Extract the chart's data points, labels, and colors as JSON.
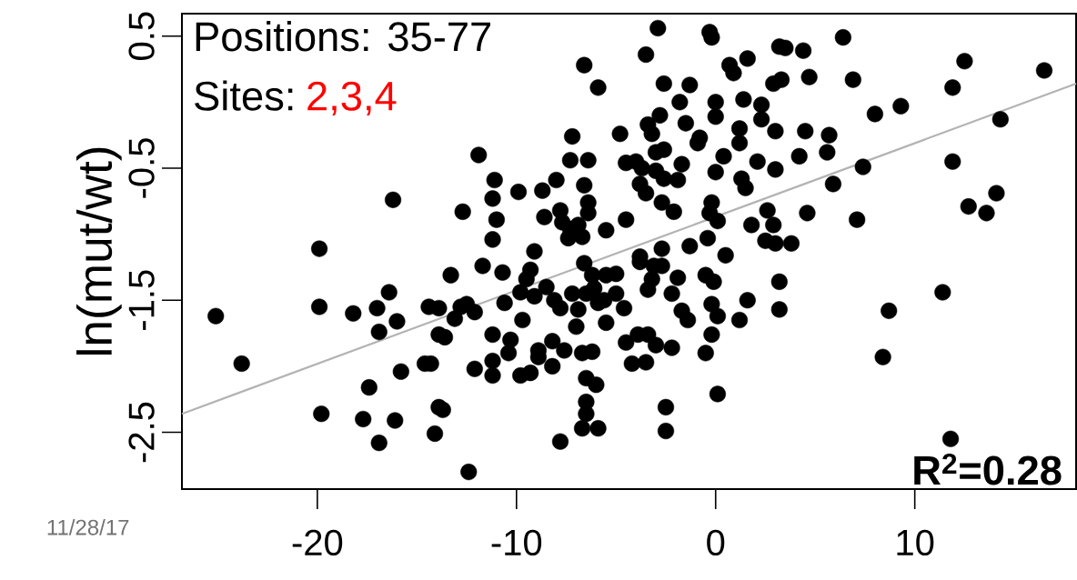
{
  "chart_data": {
    "type": "scatter",
    "ylabel": "ln(mut/wt)",
    "annotations": [
      "Positions: 35-77",
      "Sites:",
      "2,3,4",
      "R$^{2}$=0.28",
      "11/28/17"
    ],
    "xlim": [
      -26.8,
      18.1
    ],
    "ylim": [
      -2.93,
      0.67
    ],
    "xticks": [
      -20,
      -10,
      0,
      10
    ],
    "yticks": [
      0.5,
      -0.5,
      -1.5,
      -2.5
    ],
    "series": [
      {
        "color": "#000000",
        "marker": "circle",
        "x": [
          -25.1,
          -23.8,
          -19.9,
          -19.8,
          -19.9,
          -18.2,
          -17.0,
          -16.4,
          -16.0,
          -16.9,
          -13.3,
          -14.4,
          -13.9,
          -13.9,
          -13.6,
          -14.6,
          -14.3,
          -15.8,
          -17.4,
          -17.7,
          -16.9,
          -16.1,
          -14.1,
          -13.9,
          -13.7,
          -12.4,
          -12.8,
          -12.5,
          -13.1,
          -12.1,
          -12.1,
          -11.7,
          -16.2,
          -12.7,
          -11.9,
          -2.9,
          -0.3,
          -0.2,
          -6.6,
          -5.9,
          -3.5,
          -2.6,
          -1.3,
          -1.8,
          -2.8,
          -3.4,
          -3.2,
          0.0,
          0.0,
          1.4,
          2.3,
          2.3,
          3.0,
          0.7,
          1.6,
          0.9,
          2.9,
          3.2,
          -1.5,
          -0.8,
          -0.9,
          1.2,
          1.2,
          0.4,
          2.1,
          3.0,
          0.0,
          -4.8,
          -7.2,
          -7.3,
          -6.4,
          -4.5,
          -4.0,
          -3.7,
          -3.0,
          -2.6,
          -3.0,
          -2.6,
          -1.9,
          -1.7,
          -3.8,
          -3.5,
          1.3,
          1.5,
          -11.1,
          -11.2,
          -11.0,
          -11.2,
          -9.9,
          -8.7,
          -8.0,
          -6.6,
          -6.4,
          -6.4,
          -8.6,
          -7.8,
          -7.7,
          -7.3,
          -6.9,
          -7.4,
          -6.7,
          -5.5,
          -4.5,
          -2.7,
          -2.1,
          -0.2,
          -0.3,
          0.1,
          -0.4,
          1.8,
          2.6,
          2.9,
          2.5,
          3.0,
          -9.1,
          -2.7,
          -1.3,
          0.5,
          -3.8,
          3.5,
          4.4,
          6.4,
          3.3,
          4.7,
          6.9,
          12.5,
          16.5,
          11.9,
          8.0,
          9.3,
          14.3,
          4.5,
          5.7,
          5.6,
          4.2,
          7.4,
          11.9,
          5.9,
          4.6,
          7.1,
          3.8,
          14.1,
          12.7,
          13.6,
          -10.7,
          -9.3,
          -9.5,
          -9.8,
          -10.6,
          -9.1,
          -8.5,
          -6.6,
          -6.2,
          -5.5,
          -5.0,
          -7.2,
          -6.5,
          -6.1,
          -5.9,
          -5.6,
          -5.0,
          -4.6,
          -8.1,
          -7.8,
          -6.9,
          -5.5,
          -7.0,
          -9.7,
          -3.8,
          -3.1,
          -2.7,
          -3.2,
          -3.4,
          -2.2,
          -1.9,
          -0.5,
          -0.1,
          -1.7,
          -1.4,
          -0.2,
          0.1,
          1.6,
          1.2,
          3.2,
          3.2,
          -0.2,
          -0.5,
          -2.2,
          -3.0,
          -4.5,
          -3.9,
          -3.4,
          -4.2,
          -3.5,
          -11.2,
          -10.3,
          -10.4,
          -11.2,
          -11.2,
          -9.8,
          -9.3,
          -8.9,
          -8.9,
          -8.2,
          -7.6,
          -8.2,
          -6.7,
          -6.2,
          -6.5,
          -6.0,
          -6.5,
          -6.5,
          -6.7,
          -5.9,
          -7.8,
          -2.5,
          -2.5,
          0.1,
          8.7,
          11.4,
          8.4,
          11.8
        ],
        "values": [
          -1.62,
          -1.98,
          -1.55,
          -2.36,
          -1.11,
          -1.6,
          -1.56,
          -1.44,
          -1.66,
          -1.74,
          -1.31,
          -1.55,
          -1.56,
          -1.76,
          -1.78,
          -1.98,
          -1.98,
          -2.04,
          -2.16,
          -2.4,
          -2.58,
          -2.41,
          -2.51,
          -2.31,
          -2.33,
          -2.8,
          -1.55,
          -1.53,
          -1.64,
          -1.59,
          -2.02,
          -1.24,
          -0.74,
          -0.83,
          -0.4,
          0.56,
          0.53,
          0.49,
          0.28,
          0.11,
          0.36,
          0.14,
          0.13,
          0.0,
          -0.1,
          -0.17,
          -0.24,
          0.0,
          -0.11,
          0.02,
          -0.02,
          -0.13,
          -0.22,
          0.28,
          0.33,
          0.22,
          0.14,
          0.42,
          -0.16,
          -0.27,
          -0.31,
          -0.2,
          -0.31,
          -0.41,
          -0.45,
          -0.51,
          -0.53,
          -0.24,
          -0.26,
          -0.44,
          -0.44,
          -0.46,
          -0.45,
          -0.5,
          -0.38,
          -0.36,
          -0.52,
          -0.58,
          -0.59,
          -0.47,
          -0.62,
          -0.69,
          -0.58,
          -0.65,
          -0.59,
          -0.73,
          -0.89,
          -1.04,
          -0.68,
          -0.67,
          -0.59,
          -0.63,
          -0.76,
          -0.84,
          -0.87,
          -0.82,
          -0.91,
          -0.96,
          -0.93,
          -1.03,
          -1.02,
          -0.97,
          -0.89,
          -0.76,
          -0.83,
          -0.76,
          -0.84,
          -0.9,
          -1.03,
          -0.93,
          -0.82,
          -0.93,
          -1.05,
          -1.07,
          -1.13,
          -1.11,
          -1.09,
          -1.16,
          -1.17,
          0.41,
          0.39,
          0.49,
          0.17,
          0.19,
          0.17,
          0.31,
          0.24,
          0.11,
          -0.09,
          -0.03,
          -0.13,
          -0.22,
          -0.25,
          -0.38,
          -0.41,
          -0.49,
          -0.45,
          -0.62,
          -0.84,
          -0.89,
          -1.07,
          -0.69,
          -0.79,
          -0.84,
          -1.29,
          -1.27,
          -1.34,
          -1.44,
          -1.52,
          -1.47,
          -1.4,
          -1.22,
          -1.31,
          -1.31,
          -1.3,
          -1.45,
          -1.45,
          -1.41,
          -1.52,
          -1.5,
          -1.45,
          -1.56,
          -1.5,
          -1.56,
          -1.57,
          -1.67,
          -1.7,
          -1.65,
          -1.21,
          -1.24,
          -1.24,
          -1.34,
          -1.42,
          -1.45,
          -1.33,
          -1.31,
          -1.36,
          -1.58,
          -1.65,
          -1.53,
          -1.62,
          -1.5,
          -1.65,
          -1.36,
          -1.57,
          -1.76,
          -1.9,
          -1.86,
          -1.84,
          -1.82,
          -1.76,
          -1.76,
          -1.98,
          -1.97,
          -1.76,
          -1.8,
          -1.9,
          -1.96,
          -2.07,
          -2.07,
          -2.05,
          -1.88,
          -1.93,
          -1.81,
          -1.88,
          -2.0,
          -1.9,
          -1.89,
          -2.09,
          -2.14,
          -2.27,
          -2.36,
          -2.47,
          -2.47,
          -2.57,
          -2.31,
          -2.49,
          -2.21,
          -1.58,
          -1.44,
          -1.93,
          -2.55
        ]
      },
      {
        "type": "line",
        "color": "#b3b3b3",
        "marker": "none",
        "x": [
          -26.8,
          18.1
        ],
        "values": [
          -2.36,
          0.14
        ]
      }
    ]
  }
}
